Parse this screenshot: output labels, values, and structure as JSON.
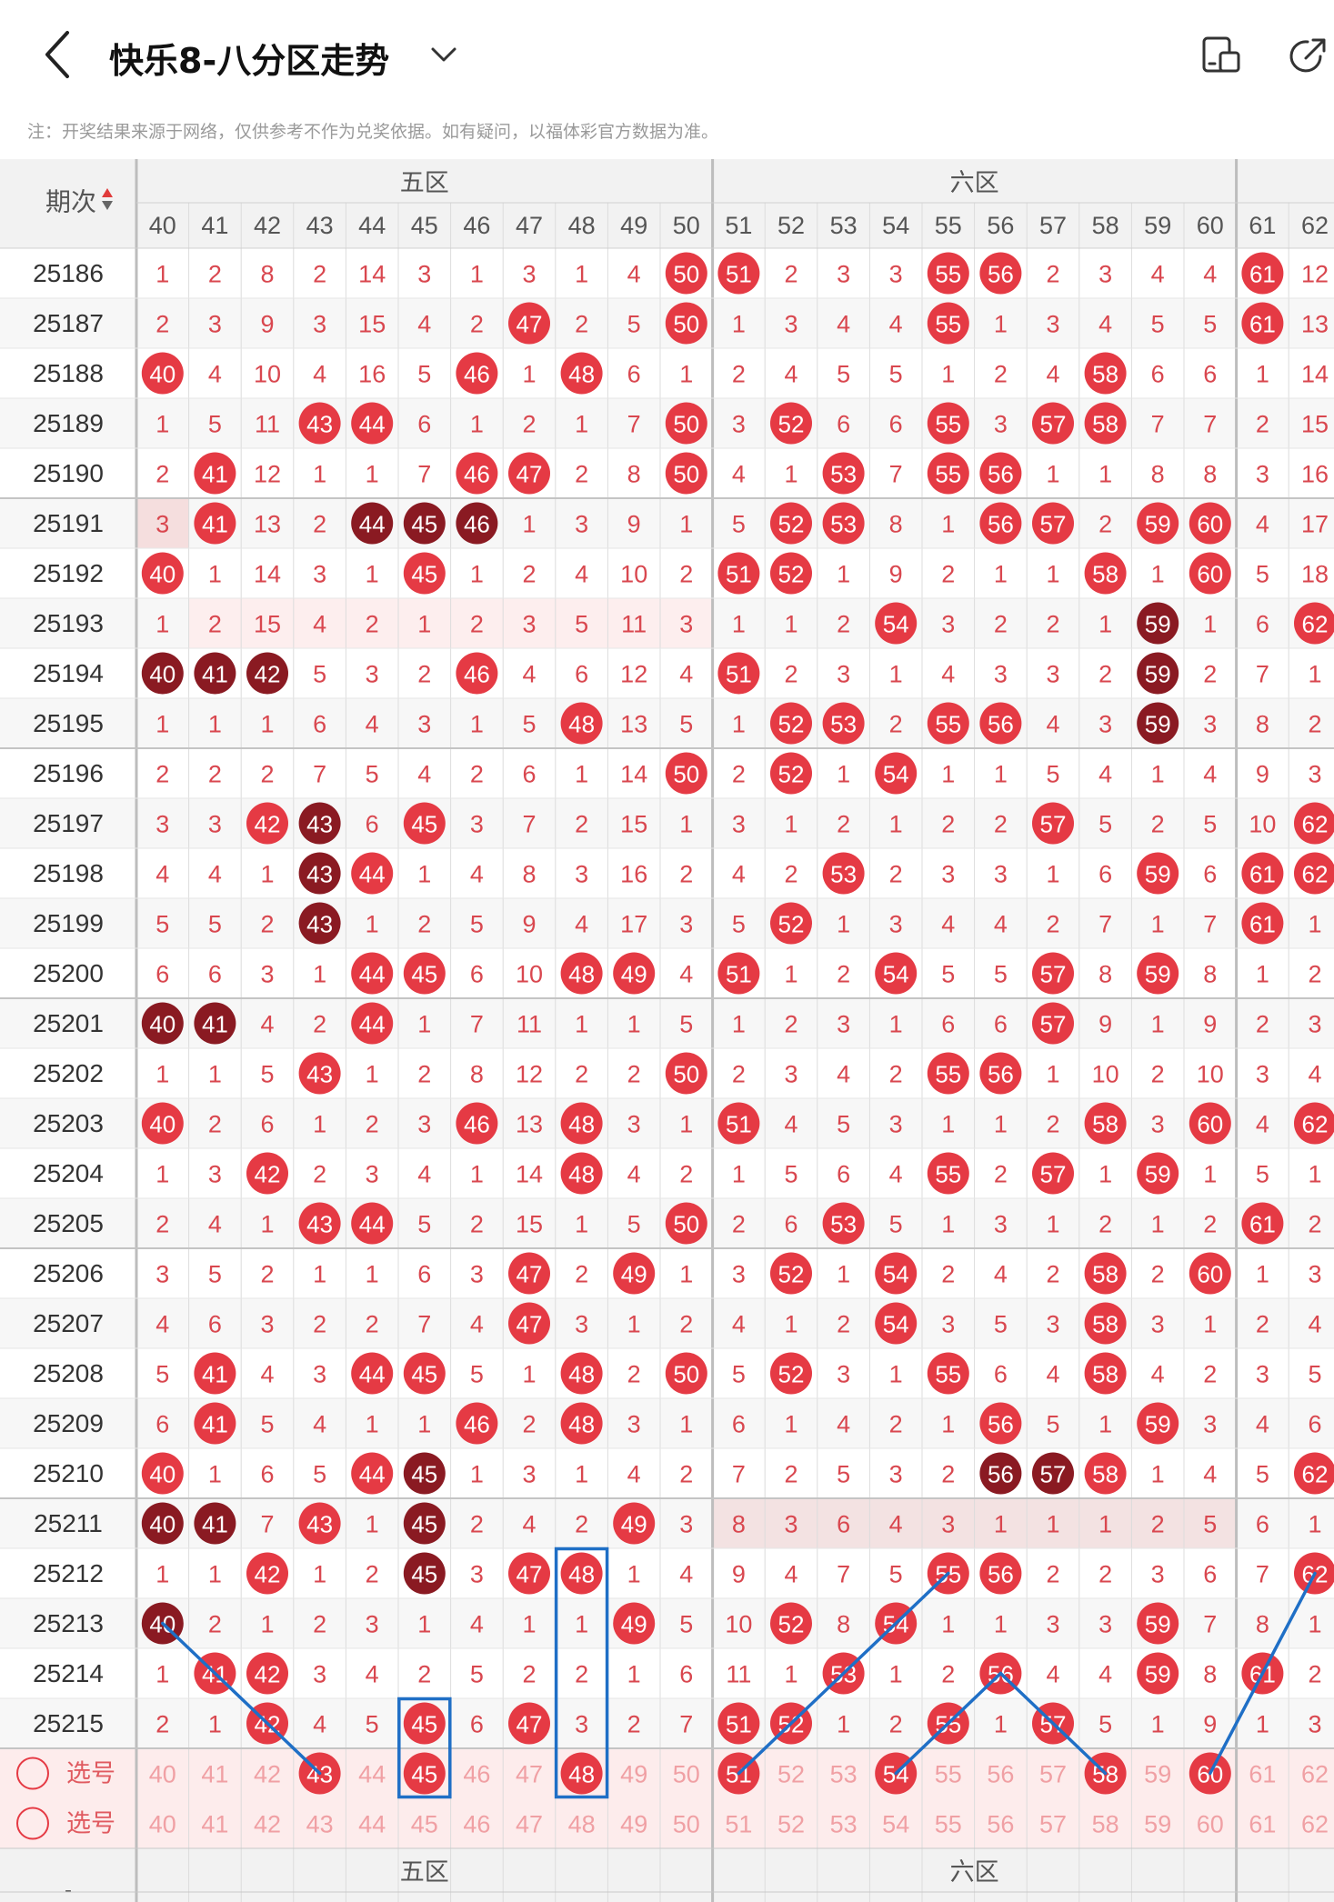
{
  "header": {
    "title": "快乐8-八分区走势",
    "back_icon": "back-icon",
    "dropdown_icon": "chevron-down-icon",
    "icon1": "device-layout-icon",
    "icon2": "share-icon"
  },
  "note": "注：开奖结果来源于网络，仅供参考不作为兑奖依据。如有疑问，以福体彩官方数据为准。",
  "table": {
    "period_header": "期次",
    "zones": [
      {
        "label": "五区",
        "cols": [
          40,
          41,
          42,
          43,
          44,
          45,
          46,
          47,
          48,
          49,
          50
        ]
      },
      {
        "label": "六区",
        "cols": [
          51,
          52,
          53,
          54,
          55,
          56,
          57,
          58,
          59,
          60
        ]
      },
      {
        "label": "",
        "cols": [
          61,
          62
        ]
      }
    ],
    "footer_zones": [
      "五区",
      "六区"
    ],
    "select_label": "选号",
    "rows": [
      {
        "p": "25186",
        "v": [
          "1",
          "2",
          "8",
          "2",
          "14",
          "3",
          "1",
          "3",
          "1",
          "4",
          "50",
          "51",
          "2",
          "3",
          "3",
          "55",
          "56",
          "2",
          "3",
          "4",
          "4",
          "61",
          "12"
        ],
        "d": []
      },
      {
        "p": "25187",
        "v": [
          "2",
          "3",
          "9",
          "3",
          "15",
          "4",
          "2",
          "47",
          "2",
          "5",
          "50",
          "1",
          "3",
          "4",
          "4",
          "55",
          "1",
          "3",
          "4",
          "5",
          "5",
          "61",
          "13"
        ],
        "d": []
      },
      {
        "p": "25188",
        "v": [
          "40",
          "4",
          "10",
          "4",
          "16",
          "5",
          "46",
          "1",
          "48",
          "6",
          "1",
          "2",
          "4",
          "5",
          "5",
          "1",
          "2",
          "4",
          "58",
          "6",
          "6",
          "1",
          "14"
        ],
        "d": []
      },
      {
        "p": "25189",
        "v": [
          "1",
          "5",
          "11",
          "43",
          "44",
          "6",
          "1",
          "2",
          "1",
          "7",
          "50",
          "3",
          "52",
          "6",
          "6",
          "55",
          "3",
          "57",
          "58",
          "7",
          "7",
          "2",
          "15"
        ],
        "d": []
      },
      {
        "p": "25190",
        "v": [
          "2",
          "41",
          "12",
          "1",
          "1",
          "7",
          "46",
          "47",
          "2",
          "8",
          "50",
          "4",
          "1",
          "53",
          "7",
          "55",
          "56",
          "1",
          "1",
          "8",
          "8",
          "3",
          "16"
        ],
        "d": []
      },
      {
        "p": "25191",
        "v": [
          "3",
          "41",
          "13",
          "2",
          "44",
          "45",
          "46",
          "1",
          "3",
          "9",
          "1",
          "5",
          "52",
          "53",
          "8",
          "1",
          "56",
          "57",
          "2",
          "59",
          "60",
          "4",
          "17"
        ],
        "d": [
          4,
          5,
          6
        ]
      },
      {
        "p": "25192",
        "v": [
          "40",
          "1",
          "14",
          "3",
          "1",
          "45",
          "1",
          "2",
          "4",
          "10",
          "2",
          "51",
          "52",
          "1",
          "9",
          "2",
          "1",
          "1",
          "58",
          "1",
          "60",
          "5",
          "18"
        ],
        "d": []
      },
      {
        "p": "25193",
        "v": [
          "1",
          "2",
          "15",
          "4",
          "2",
          "1",
          "2",
          "3",
          "5",
          "11",
          "3",
          "1",
          "1",
          "2",
          "54",
          "3",
          "2",
          "2",
          "1",
          "59",
          "1",
          "6",
          "62"
        ],
        "d": [
          19
        ]
      },
      {
        "p": "25194",
        "v": [
          "40",
          "41",
          "42",
          "5",
          "3",
          "2",
          "46",
          "4",
          "6",
          "12",
          "4",
          "51",
          "2",
          "3",
          "1",
          "4",
          "3",
          "3",
          "2",
          "59",
          "2",
          "7",
          "1"
        ],
        "d": [
          0,
          1,
          2,
          19
        ]
      },
      {
        "p": "25195",
        "v": [
          "1",
          "1",
          "1",
          "6",
          "4",
          "3",
          "1",
          "5",
          "48",
          "13",
          "5",
          "1",
          "52",
          "53",
          "2",
          "55",
          "56",
          "4",
          "3",
          "59",
          "3",
          "8",
          "2"
        ],
        "d": [
          19
        ]
      },
      {
        "p": "25196",
        "v": [
          "2",
          "2",
          "2",
          "7",
          "5",
          "4",
          "2",
          "6",
          "1",
          "14",
          "50",
          "2",
          "52",
          "1",
          "54",
          "1",
          "1",
          "5",
          "4",
          "1",
          "4",
          "9",
          "3"
        ],
        "d": []
      },
      {
        "p": "25197",
        "v": [
          "3",
          "3",
          "42",
          "43",
          "6",
          "45",
          "3",
          "7",
          "2",
          "15",
          "1",
          "3",
          "1",
          "2",
          "1",
          "2",
          "2",
          "57",
          "5",
          "2",
          "5",
          "10",
          "62"
        ],
        "d": [
          3
        ]
      },
      {
        "p": "25198",
        "v": [
          "4",
          "4",
          "1",
          "43",
          "44",
          "1",
          "4",
          "8",
          "3",
          "16",
          "2",
          "4",
          "2",
          "53",
          "2",
          "3",
          "3",
          "1",
          "6",
          "59",
          "6",
          "61",
          "62"
        ],
        "d": [
          3
        ]
      },
      {
        "p": "25199",
        "v": [
          "5",
          "5",
          "2",
          "43",
          "1",
          "2",
          "5",
          "9",
          "4",
          "17",
          "3",
          "5",
          "52",
          "1",
          "3",
          "4",
          "4",
          "2",
          "7",
          "1",
          "7",
          "61",
          "1"
        ],
        "d": [
          3
        ]
      },
      {
        "p": "25200",
        "v": [
          "6",
          "6",
          "3",
          "1",
          "44",
          "45",
          "6",
          "10",
          "48",
          "49",
          "4",
          "51",
          "1",
          "2",
          "54",
          "5",
          "5",
          "57",
          "8",
          "59",
          "8",
          "1",
          "2"
        ],
        "d": []
      },
      {
        "p": "25201",
        "v": [
          "40",
          "41",
          "4",
          "2",
          "44",
          "1",
          "7",
          "11",
          "1",
          "1",
          "5",
          "1",
          "2",
          "3",
          "1",
          "6",
          "6",
          "57",
          "9",
          "1",
          "9",
          "2",
          "3"
        ],
        "d": [
          0,
          1
        ]
      },
      {
        "p": "25202",
        "v": [
          "1",
          "1",
          "5",
          "43",
          "1",
          "2",
          "8",
          "12",
          "2",
          "2",
          "50",
          "2",
          "3",
          "4",
          "2",
          "55",
          "56",
          "1",
          "10",
          "2",
          "10",
          "3",
          "4"
        ],
        "d": []
      },
      {
        "p": "25203",
        "v": [
          "40",
          "2",
          "6",
          "1",
          "2",
          "3",
          "46",
          "13",
          "48",
          "3",
          "1",
          "51",
          "4",
          "5",
          "3",
          "1",
          "1",
          "2",
          "58",
          "3",
          "60",
          "4",
          "62"
        ],
        "d": []
      },
      {
        "p": "25204",
        "v": [
          "1",
          "3",
          "42",
          "2",
          "3",
          "4",
          "1",
          "14",
          "48",
          "4",
          "2",
          "1",
          "5",
          "6",
          "4",
          "55",
          "2",
          "57",
          "1",
          "59",
          "1",
          "5",
          "1"
        ],
        "d": []
      },
      {
        "p": "25205",
        "v": [
          "2",
          "4",
          "1",
          "43",
          "44",
          "5",
          "2",
          "15",
          "1",
          "5",
          "50",
          "2",
          "6",
          "53",
          "5",
          "1",
          "3",
          "1",
          "2",
          "1",
          "2",
          "61",
          "2"
        ],
        "d": []
      },
      {
        "p": "25206",
        "v": [
          "3",
          "5",
          "2",
          "1",
          "1",
          "6",
          "3",
          "47",
          "2",
          "49",
          "1",
          "3",
          "52",
          "1",
          "54",
          "2",
          "4",
          "2",
          "58",
          "2",
          "60",
          "1",
          "3"
        ],
        "d": [
          17
        ]
      },
      {
        "p": "25207",
        "v": [
          "4",
          "6",
          "3",
          "2",
          "2",
          "7",
          "4",
          "47",
          "3",
          "1",
          "2",
          "4",
          "1",
          "2",
          "54",
          "3",
          "5",
          "3",
          "58",
          "3",
          "1",
          "2",
          "4"
        ],
        "d": [
          17
        ]
      },
      {
        "p": "25208",
        "v": [
          "5",
          "41",
          "4",
          "3",
          "44",
          "45",
          "5",
          "1",
          "48",
          "2",
          "50",
          "5",
          "52",
          "3",
          "1",
          "55",
          "6",
          "4",
          "58",
          "4",
          "2",
          "3",
          "5"
        ],
        "d": [
          17
        ]
      },
      {
        "p": "25209",
        "v": [
          "6",
          "41",
          "5",
          "4",
          "1",
          "1",
          "46",
          "2",
          "48",
          "3",
          "1",
          "6",
          "1",
          "4",
          "2",
          "1",
          "56",
          "5",
          "1",
          "59",
          "3",
          "4",
          "6"
        ],
        "d": []
      },
      {
        "p": "25210",
        "v": [
          "40",
          "1",
          "6",
          "5",
          "44",
          "45",
          "1",
          "3",
          "1",
          "4",
          "2",
          "7",
          "2",
          "5",
          "3",
          "2",
          "56",
          "57",
          "58",
          "1",
          "4",
          "5",
          "62"
        ],
        "d": [
          5,
          15,
          16,
          17
        ]
      },
      {
        "p": "25211",
        "v": [
          "40",
          "41",
          "7",
          "43",
          "1",
          "45",
          "2",
          "4",
          "2",
          "49",
          "3",
          "8",
          "3",
          "6",
          "4",
          "3",
          "1",
          "1",
          "1",
          "2",
          "5",
          "6",
          "1"
        ],
        "d": [
          0,
          1,
          5
        ]
      },
      {
        "p": "25212",
        "v": [
          "1",
          "1",
          "42",
          "1",
          "2",
          "45",
          "3",
          "47",
          "48",
          "1",
          "4",
          "9",
          "4",
          "7",
          "5",
          "55",
          "56",
          "2",
          "2",
          "3",
          "6",
          "7",
          "62"
        ],
        "d": [
          5
        ]
      },
      {
        "p": "25213",
        "v": [
          "40",
          "2",
          "1",
          "2",
          "3",
          "1",
          "4",
          "1",
          "1",
          "49",
          "5",
          "10",
          "52",
          "8",
          "54",
          "1",
          "1",
          "3",
          "3",
          "59",
          "7",
          "8",
          "1"
        ],
        "d": [
          0
        ]
      },
      {
        "p": "25214",
        "v": [
          "1",
          "41",
          "42",
          "3",
          "4",
          "2",
          "5",
          "2",
          "2",
          "1",
          "6",
          "11",
          "1",
          "53",
          "1",
          "2",
          "56",
          "4",
          "4",
          "59",
          "8",
          "61",
          "2"
        ],
        "d": []
      },
      {
        "p": "25215",
        "v": [
          "2",
          "1",
          "42",
          "4",
          "5",
          "45",
          "6",
          "47",
          "3",
          "2",
          "7",
          "51",
          "52",
          "1",
          "2",
          "55",
          "1",
          "57",
          "5",
          "1",
          "9",
          "1",
          "3"
        ],
        "d": []
      }
    ],
    "selected": [
      43,
      45,
      48,
      51,
      54,
      58,
      60
    ]
  }
}
